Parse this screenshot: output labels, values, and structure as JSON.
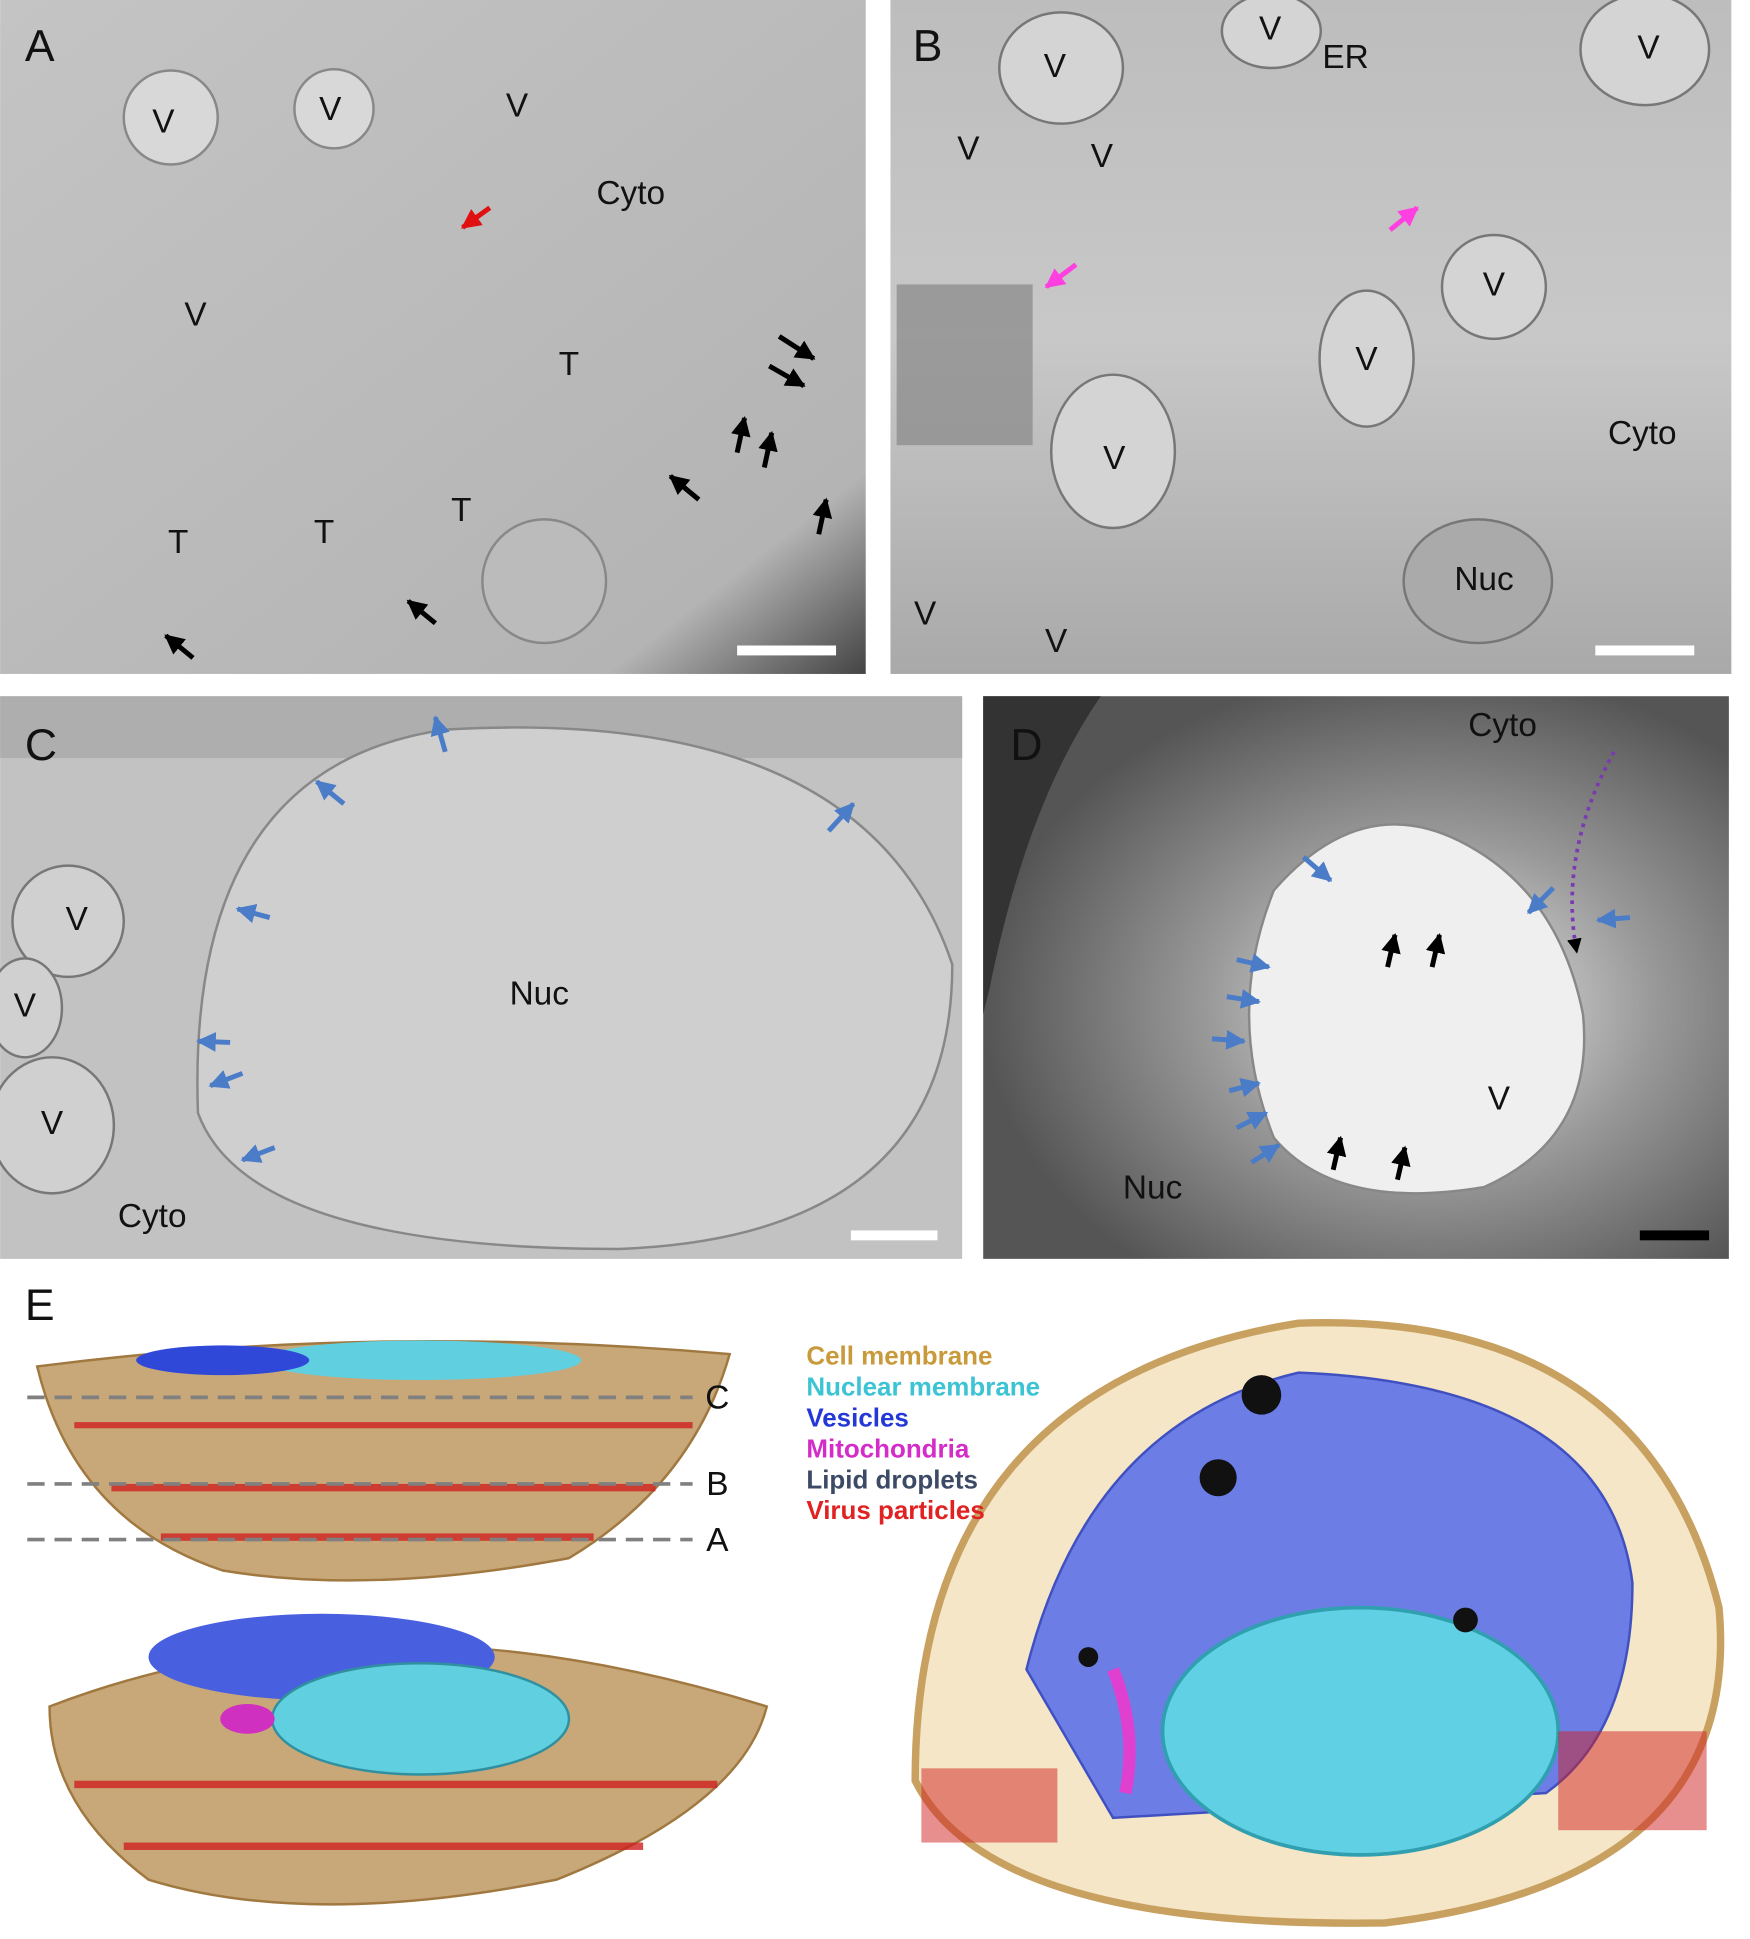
{
  "panels": [
    {
      "letter": "A",
      "labels": [
        "V",
        "V",
        "V",
        "Cyto",
        "V",
        "T",
        "T",
        "T",
        "T"
      ]
    },
    {
      "letter": "B",
      "labels": [
        "V",
        "V",
        "ER",
        "V",
        "V",
        "V",
        "V",
        "V",
        "Cyto",
        "V",
        "Nuc",
        "V",
        "V"
      ]
    },
    {
      "letter": "C",
      "labels": [
        "V",
        "V",
        "Nuc",
        "V",
        "Cyto"
      ]
    },
    {
      "letter": "D",
      "labels": [
        "Cyto",
        "V",
        "Nuc"
      ]
    }
  ],
  "panel_e": {
    "letter": "E",
    "section_labels": [
      "C",
      "B",
      "A"
    ],
    "legend": [
      {
        "text": "Cell membrane",
        "color": "#c89a3c"
      },
      {
        "text": "Nuclear membrane",
        "color": "#3cc4d4"
      },
      {
        "text": "Vesicles",
        "color": "#2438d8"
      },
      {
        "text": "Mitochondria",
        "color": "#d42cc8"
      },
      {
        "text": "Lipid droplets",
        "color": "#3c4a66"
      },
      {
        "text": "Virus particles",
        "color": "#e02222"
      }
    ]
  }
}
